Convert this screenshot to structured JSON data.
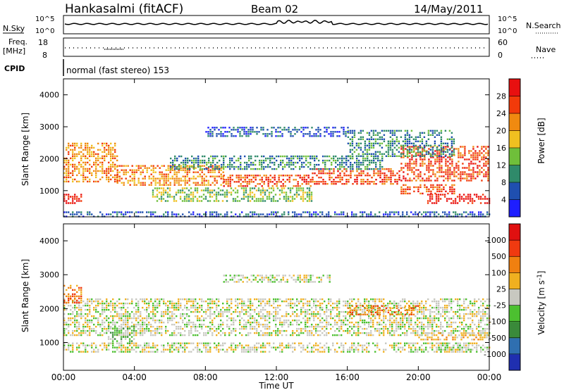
{
  "header": {
    "station": "Hankasalmi (fitACF)",
    "beam": "Beam 02",
    "date": "14/May/2011",
    "nsky_label": "N.Sky",
    "nsky_top": "10^5",
    "nsky_bottom": "10^0",
    "nsearch_top": "10^5",
    "nsearch_bottom": "10^0",
    "nsearch_label": "N.Search",
    "freq_label_1": "Freq.",
    "freq_label_2": "[MHz]",
    "freq_top": "18",
    "freq_bottom": "8",
    "nave_top": "60",
    "nave_bottom": "0",
    "nave_label": "Nave",
    "cpid_label": "CPID",
    "cpid_text": "normal (fast stereo) 153"
  },
  "chart_data": [
    {
      "type": "heatmap",
      "name": "power",
      "ylabel": "Slant Range [km]",
      "xlabel": "Time UT",
      "xlim": [
        0,
        24
      ],
      "ylim": [
        180,
        4500
      ],
      "yticks": [
        "1000",
        "2000",
        "3000",
        "4000"
      ],
      "xticks": [
        "00:00",
        "04:00",
        "08:00",
        "12:00",
        "16:00",
        "20:00",
        "00:00"
      ],
      "colorbar": {
        "label": "Power [dB]",
        "ticks": [
          "4",
          "8",
          "12",
          "16",
          "20",
          "24",
          "28"
        ],
        "colors": [
          "#1e1eff",
          "#1f4fb0",
          "#2f8a6a",
          "#6fbf3a",
          "#f0c020",
          "#f08a10",
          "#f23a0a",
          "#e81010"
        ]
      },
      "bands": [
        {
          "t": [
            0,
            1
          ],
          "r": [
            600,
            900
          ],
          "level": 7
        },
        {
          "t": [
            0,
            3
          ],
          "r": [
            1300,
            2500
          ],
          "level": 5
        },
        {
          "t": [
            3,
            9
          ],
          "r": [
            1200,
            1800
          ],
          "level": 5
        },
        {
          "t": [
            9,
            14
          ],
          "r": [
            1150,
            1500
          ],
          "level": 6
        },
        {
          "t": [
            14,
            19
          ],
          "r": [
            1200,
            1700
          ],
          "level": 6
        },
        {
          "t": [
            19,
            24
          ],
          "r": [
            1300,
            2400
          ],
          "level": 6
        },
        {
          "t": [
            20.5,
            24
          ],
          "r": [
            600,
            900
          ],
          "level": 7
        },
        {
          "t": [
            19,
            22
          ],
          "r": [
            900,
            1200
          ],
          "level": 6
        },
        {
          "t": [
            6,
            18
          ],
          "r": [
            1700,
            2100
          ],
          "level": 2
        },
        {
          "t": [
            16,
            22
          ],
          "r": [
            2100,
            2900
          ],
          "level": 2
        },
        {
          "t": [
            8,
            16
          ],
          "r": [
            2700,
            3000
          ],
          "level": 1
        },
        {
          "t": [
            5,
            14
          ],
          "r": [
            700,
            1100
          ],
          "level": 3
        },
        {
          "t": [
            0,
            24
          ],
          "r": [
            200,
            350
          ],
          "level": 1
        }
      ]
    },
    {
      "type": "heatmap",
      "name": "velocity",
      "ylabel": "Slant Range [km]",
      "xlabel": "Time UT",
      "xlim": [
        0,
        24
      ],
      "ylim": [
        180,
        4500
      ],
      "yticks": [
        "1000",
        "2000",
        "3000",
        "4000"
      ],
      "xticks": [
        "00:00",
        "04:00",
        "08:00",
        "12:00",
        "16:00",
        "20:00",
        "00:00"
      ],
      "colorbar": {
        "label": "Velocity [m s^-1]",
        "ticks": [
          "1000",
          "500",
          "100",
          "25",
          "-25",
          "-100",
          "-500",
          "-1000"
        ],
        "colors": [
          "#1f2fb0",
          "#2f6fb0",
          "#3a8a3a",
          "#4cc030",
          "#c8c8c0",
          "#f0b020",
          "#f08010",
          "#f03a10",
          "#e01010"
        ]
      },
      "bands": [
        {
          "t": [
            0,
            24
          ],
          "r": [
            1200,
            2300
          ],
          "level": 4
        },
        {
          "t": [
            0,
            24
          ],
          "r": [
            700,
            1000
          ],
          "level": 4
        },
        {
          "t": [
            0,
            1
          ],
          "r": [
            2200,
            2700
          ],
          "level": 6
        },
        {
          "t": [
            2.5,
            4
          ],
          "r": [
            1000,
            1500
          ],
          "level": 3
        },
        {
          "t": [
            20,
            24
          ],
          "r": [
            1100,
            1300
          ],
          "level": 5
        },
        {
          "t": [
            21,
            23
          ],
          "r": [
            700,
            1000
          ],
          "level": 4
        },
        {
          "t": [
            16,
            20
          ],
          "r": [
            1800,
            2100
          ],
          "level": 6
        },
        {
          "t": [
            9,
            15
          ],
          "r": [
            2800,
            3000
          ],
          "level": 4
        }
      ]
    }
  ]
}
